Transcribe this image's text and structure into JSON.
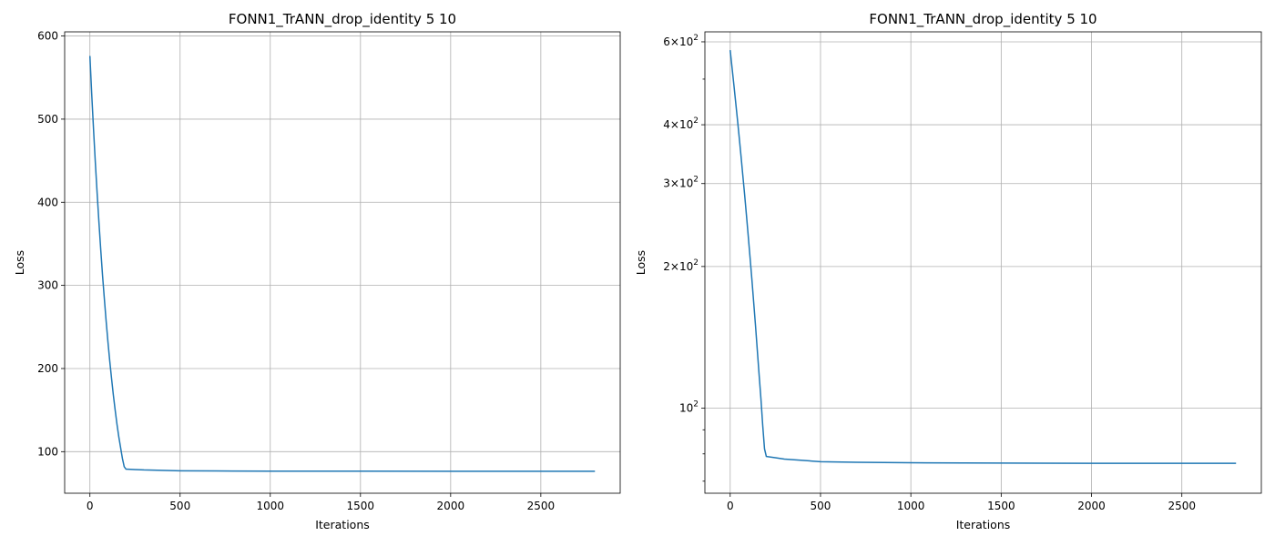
{
  "chart_data": [
    {
      "type": "line",
      "title": "FONN1_TrANN_drop_identity 5 10",
      "xlabel": "Iterations",
      "ylabel": "Loss",
      "yscale": "linear",
      "xlim": [
        -140,
        2940
      ],
      "ylim": [
        50,
        605
      ],
      "grid": true,
      "xticks": [
        0,
        500,
        1000,
        1500,
        2000,
        2500
      ],
      "xtick_labels": [
        "0",
        "500",
        "1000",
        "1500",
        "2000",
        "2500"
      ],
      "yticks": [
        100,
        200,
        300,
        400,
        500,
        600
      ],
      "ytick_labels": [
        "100",
        "200",
        "300",
        "400",
        "500",
        "600"
      ],
      "yminor_ticks": [],
      "color": "#1f77b4",
      "series": [
        {
          "x": [
            0,
            10,
            20,
            30,
            40,
            50,
            60,
            70,
            80,
            90,
            100,
            110,
            120,
            130,
            140,
            150,
            160,
            170,
            180,
            190,
            200,
            250,
            300,
            400,
            500,
            700,
            1000,
            1500,
            2000,
            2500,
            2800
          ],
          "y": [
            576,
            530,
            488,
            448,
            411,
            376,
            343,
            312,
            284,
            257,
            232,
            209,
            188,
            168,
            150,
            133,
            118,
            105,
            92,
            82,
            79,
            78.5,
            78,
            77.5,
            77,
            76.8,
            76.6,
            76.5,
            76.4,
            76.4,
            76.4
          ]
        }
      ]
    },
    {
      "type": "line",
      "title": "FONN1_TrANN_drop_identity 5 10",
      "xlabel": "Iterations",
      "ylabel": "Loss",
      "yscale": "log",
      "xlim": [
        -140,
        2940
      ],
      "ylim": [
        66,
        630
      ],
      "grid": true,
      "xticks": [
        0,
        500,
        1000,
        1500,
        2000,
        2500
      ],
      "xtick_labels": [
        "0",
        "500",
        "1000",
        "1500",
        "2000",
        "2500"
      ],
      "yticks": [
        100,
        200,
        300,
        400,
        600
      ],
      "ytick_labels": [
        "10^2",
        "2×10^2",
        "3×10^2",
        "4×10^2",
        "6×10^2"
      ],
      "yminor_ticks": [
        70,
        80,
        90,
        500
      ],
      "color": "#1f77b4",
      "series": [
        {
          "x": [
            0,
            10,
            20,
            30,
            40,
            50,
            60,
            70,
            80,
            90,
            100,
            110,
            120,
            130,
            140,
            150,
            160,
            170,
            180,
            190,
            200,
            250,
            300,
            400,
            500,
            700,
            1000,
            1500,
            2000,
            2500,
            2800
          ],
          "y": [
            576,
            530,
            488,
            448,
            411,
            376,
            343,
            312,
            284,
            257,
            232,
            209,
            188,
            168,
            150,
            133,
            118,
            105,
            92,
            82,
            79,
            78.5,
            78,
            77.5,
            77,
            76.8,
            76.6,
            76.5,
            76.4,
            76.4,
            76.4
          ]
        }
      ]
    }
  ]
}
